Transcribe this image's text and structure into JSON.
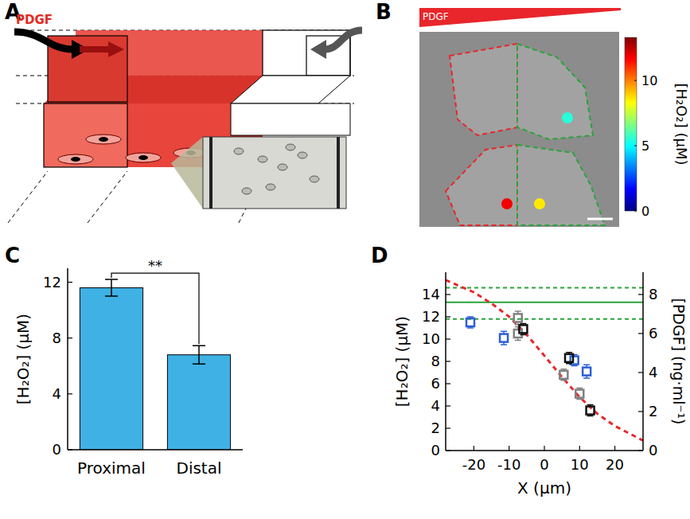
{
  "diagram": {
    "panel": "A",
    "text": "PDGF"
  },
  "image": {
    "panel": "B",
    "gradient_text": "PDGF",
    "spots": [
      {
        "value": 5.5
      },
      {
        "value": 11.8
      },
      {
        "value": 8.6
      }
    ],
    "colorbar": {
      "title": "[H₂O₂] (μM)",
      "range": [
        0,
        13.3
      ],
      "ticks": [
        0,
        5,
        10
      ]
    }
  },
  "chart_data": [
    {
      "panel": "C",
      "type": "bar",
      "categories": [
        "Proximal",
        "Distal"
      ],
      "values": [
        11.6,
        6.8
      ],
      "errors": [
        0.6,
        0.65
      ],
      "color": "#3fb1e5",
      "ylim": [
        0,
        13
      ],
      "yticks": [
        0,
        4,
        8,
        12
      ],
      "y_label": "[H₂O₂] (μM)",
      "annotation": "**"
    },
    {
      "panel": "D",
      "type": "scatter",
      "x_label": "X (μm)",
      "y_label": "[H₂O₂] (μM)",
      "y2_label": "[PDGF] (ng·ml⁻¹)",
      "xlim": [
        -28,
        28
      ],
      "xticks": [
        -20,
        -10,
        0,
        10,
        20
      ],
      "ylim": [
        0,
        16
      ],
      "yticks": [
        0,
        2,
        4,
        6,
        8,
        10,
        12,
        14
      ],
      "y2lim": [
        0,
        9.14
      ],
      "y2ticks": [
        0,
        2,
        4,
        6,
        8
      ],
      "series": [
        {
          "color": "#2c5fd4",
          "marker": "square",
          "x": [
            -21,
            -11.5,
            8.5,
            12
          ],
          "values": [
            11.5,
            10.1,
            8.1,
            7.1
          ],
          "errors": [
            0.5,
            0.6,
            0.5,
            0.6
          ]
        },
        {
          "color": "#808080",
          "marker": "square",
          "x": [
            -7.5,
            -7.5,
            5.5,
            10
          ],
          "values": [
            11.9,
            10.5,
            6.8,
            5.1
          ],
          "errors": [
            0.6,
            0.6,
            0.5,
            0.5
          ]
        },
        {
          "color": "#111111",
          "marker": "square",
          "x": [
            -6,
            7,
            13
          ],
          "values": [
            10.9,
            8.3,
            3.6
          ],
          "errors": [
            0.5,
            0.5,
            0.5
          ]
        },
        {
          "type": "line",
          "color": "#2aa33a",
          "line_style": "solid",
          "x": [
            -28,
            28
          ],
          "values": [
            13.3,
            13.3
          ]
        },
        {
          "type": "line",
          "color": "#2aa33a",
          "line_style": "dashed",
          "x": [
            -28,
            28
          ],
          "values": [
            14.6,
            14.6
          ]
        },
        {
          "type": "line",
          "color": "#2aa33a",
          "line_style": "dashed",
          "x": [
            -28,
            28
          ],
          "values": [
            11.8,
            11.8
          ]
        },
        {
          "type": "line",
          "axis": "y2",
          "color": "#e8262b",
          "line_style": "dashed",
          "x": [
            -28,
            -20,
            -15,
            -10,
            -5,
            0,
            5,
            10,
            15,
            20,
            28
          ],
          "values": [
            8.74,
            8.11,
            7.54,
            6.86,
            5.94,
            4.86,
            3.77,
            2.74,
            1.89,
            1.26,
            0.51
          ]
        }
      ]
    }
  ]
}
